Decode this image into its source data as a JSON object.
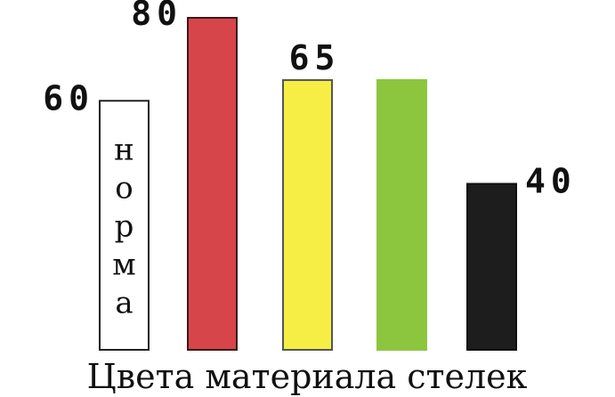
{
  "chart_data": {
    "type": "bar",
    "xlabel": "Цвета материала стелек",
    "ylabel": "",
    "title": "",
    "ylim": [
      0,
      80
    ],
    "bars": [
      {
        "value": 60,
        "value_label": "60",
        "color": "#ffffff",
        "outline": "#222222",
        "text": "норма"
      },
      {
        "value": 80,
        "value_label": "80",
        "color": "#d6454a",
        "outline": "#3a1a1a"
      },
      {
        "value": 65,
        "value_label": "65",
        "color": "#f7ee45",
        "outline": "#555555"
      },
      {
        "value": 65,
        "value_label": "",
        "color": "#8cc63f",
        "outline": "#8cc63f"
      },
      {
        "value": 40,
        "value_label": "40",
        "color": "#1d1d1d",
        "outline": "#111111"
      }
    ]
  }
}
